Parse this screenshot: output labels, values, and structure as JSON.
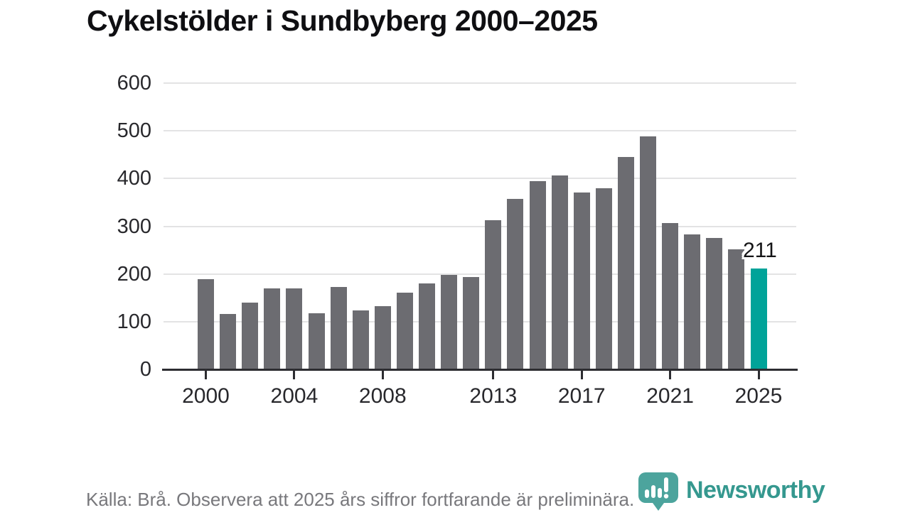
{
  "title": "Cykelstölder i Sundbyberg 2000–2025",
  "chart_data": {
    "type": "bar",
    "x": [
      2000,
      2001,
      2002,
      2003,
      2004,
      2005,
      2006,
      2007,
      2008,
      2009,
      2010,
      2011,
      2012,
      2013,
      2014,
      2015,
      2016,
      2017,
      2018,
      2019,
      2020,
      2021,
      2022,
      2023,
      2024,
      2025
    ],
    "values": [
      189,
      116,
      140,
      170,
      169,
      117,
      172,
      124,
      133,
      161,
      180,
      198,
      193,
      313,
      357,
      395,
      406,
      370,
      379,
      445,
      489,
      306,
      283,
      275,
      251,
      211
    ],
    "title": "Cykelstölder i Sundbyberg 2000–2025",
    "xlabel": "",
    "ylabel": "",
    "ylim": [
      0,
      600
    ],
    "yticks": [
      0,
      100,
      200,
      300,
      400,
      500,
      600
    ],
    "xticks": [
      2000,
      2004,
      2008,
      2013,
      2017,
      2021,
      2025
    ],
    "grid": "horizontal",
    "legend": "none",
    "bar_color": "#6c6c71",
    "highlight_year": 2025,
    "highlight_color": "#00a399",
    "highlight_label": "211"
  },
  "footer": {
    "source_text": "Källa: Brå. Observera att 2025 års siffror fortfarande är preliminära."
  },
  "logo": {
    "text": "Newsworthy",
    "color": "#35988f",
    "icon": "newsworthy-pin-barchart-icon"
  }
}
